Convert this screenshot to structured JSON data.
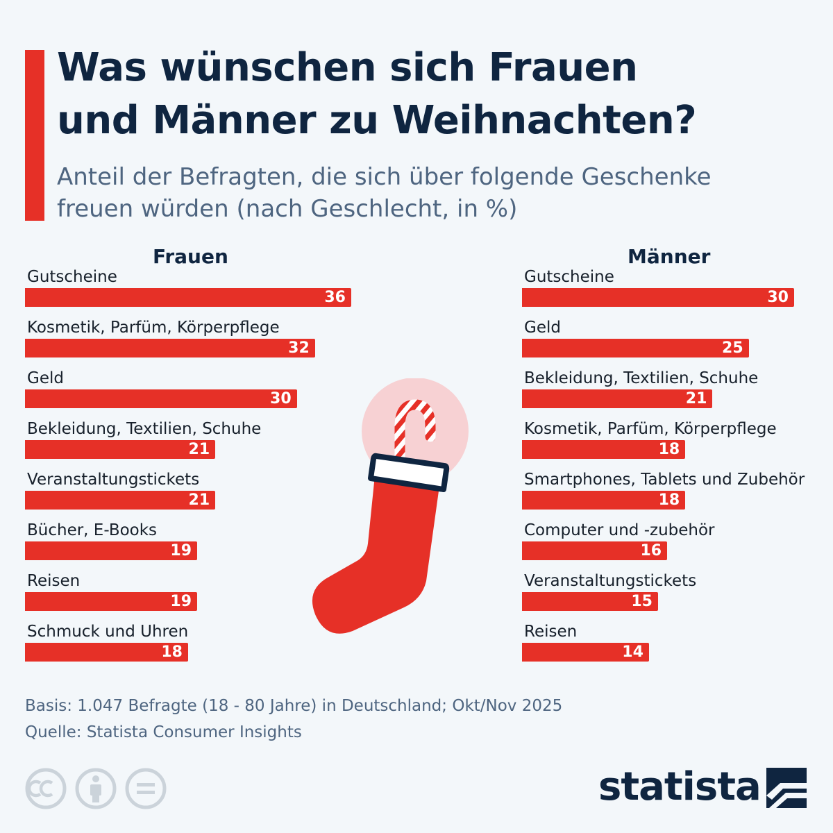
{
  "header": {
    "title_line1": "Was wünschen sich Frauen",
    "title_line2": "und Männer zu Weihnachten?",
    "subtitle_line1": "Anteil der Befragten, die sich über folgende Geschenke",
    "subtitle_line2": "freuen würden (nach Geschlecht, in %)"
  },
  "colors": {
    "accent": "#e63027",
    "title": "#0f2540",
    "subtitle": "#4e6580",
    "background": "#f3f7fa"
  },
  "chart_data": [
    {
      "type": "bar",
      "orientation": "horizontal",
      "title": "Frauen",
      "categories": [
        "Gutscheine",
        "Kosmetik, Parfüm, Körperpflege",
        "Geld",
        "Bekleidung, Textilien, Schuhe",
        "Veranstaltungstickets",
        "Bücher, E-Books",
        "Reisen",
        "Schmuck und Uhren"
      ],
      "values": [
        36,
        32,
        30,
        21,
        21,
        19,
        19,
        18
      ],
      "unit": "%",
      "xlim": [
        0,
        36
      ],
      "grid": false,
      "bar_color": "#e63027"
    },
    {
      "type": "bar",
      "orientation": "horizontal",
      "title": "Männer",
      "categories": [
        "Gutscheine",
        "Geld",
        "Bekleidung, Textilien, Schuhe",
        "Kosmetik, Parfüm, Körperpflege",
        "Smartphones, Tablets und Zubehör",
        "Computer und -zubehör",
        "Veranstaltungstickets",
        "Reisen"
      ],
      "values": [
        30,
        25,
        21,
        18,
        18,
        16,
        15,
        14
      ],
      "unit": "%",
      "xlim": [
        0,
        30
      ],
      "grid": false,
      "bar_color": "#e63027"
    }
  ],
  "illustration": {
    "icon": "christmas-stocking-with-candy-cane-icon"
  },
  "notes": {
    "basis": "Basis: 1.047 Befragte (18 - 80 Jahre) in Deutschland; Okt/Nov 2025",
    "source": "Quelle: Statista Consumer Insights"
  },
  "footer": {
    "license_icons": [
      "cc-icon",
      "attribution-icon",
      "no-derivatives-icon"
    ],
    "brand": "statista"
  }
}
